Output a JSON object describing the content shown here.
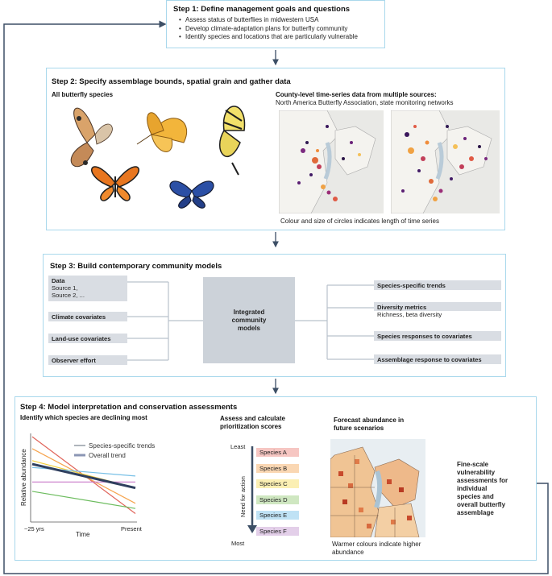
{
  "colors": {
    "box_border": "#a9d8ec",
    "arrow": "#3d4f66",
    "connector": "#b9c2cc",
    "tag_bg": "#d9dde3",
    "center_bg": "#ccd2d9"
  },
  "step1": {
    "title": "Step 1: Define management goals and questions",
    "bullets": [
      "Assess status of butterflies in midwestern USA",
      "Develop climate-adaptation plans for butterfly community",
      "Identify species and locations that are particularly vulnerable"
    ]
  },
  "step2": {
    "title": "Step 2: Specify assemblage bounds, spatial grain and gather data",
    "left_label": "All butterfly species",
    "right_title": "County-level time-series data from multiple sources:",
    "right_sources": "North America Butterfly Association, state monitoring networks",
    "caption": "Colour and size of circles indicates length of time series"
  },
  "step3": {
    "title": "Step 3: Build contemporary community models",
    "data_label": "Data",
    "data_sources": [
      "Source 1,",
      "Source 2, ..."
    ],
    "inputs": [
      "Climate covariates",
      "Land-use covariates",
      "Observer effort"
    ],
    "center": [
      "Integrated",
      "community",
      "models"
    ],
    "outputs": [
      "Species-specific trends",
      "Diversity metrics",
      "Species responses to covariates",
      "Assemblage response to covariates"
    ],
    "diversity_sub": "Richness, beta diversity"
  },
  "step4": {
    "title": "Step 4: Model interpretation and conservation assessments",
    "decline_title": "Identify which species are declining most",
    "assess_title": [
      "Assess and calculate",
      "prioritization scores"
    ],
    "forecast_title": [
      "Forecast abundance in",
      "future scenarios"
    ],
    "least": "Least",
    "most": "Most",
    "need_label": "Need for action",
    "species": [
      "Species A",
      "Species B",
      "Species C",
      "Species D",
      "Species E",
      "Species F"
    ],
    "species_colors": [
      "#f6c6c2",
      "#fad7b3",
      "#fbefb3",
      "#cfe7c1",
      "#bfe2f5",
      "#e3cfe9"
    ],
    "forecast_caption": [
      "Warmer colours indicate higher",
      "abundance"
    ],
    "final_text": [
      "Fine-scale",
      "vulnerability",
      "assessments for",
      "individual",
      "species and",
      "overall butterfly",
      "assemblage"
    ]
  },
  "chart_data": {
    "type": "line",
    "title": "",
    "xlabel": "Time",
    "ylabel": "Relative abundance",
    "x": [
      "~25 yrs",
      "Present"
    ],
    "legend": [
      "Species-specific trends",
      "Overall trend"
    ],
    "series": [
      {
        "values": [
          0.98,
          0.08
        ],
        "color": "#e0645a"
      },
      {
        "values": [
          0.84,
          0.2
        ],
        "color": "#f6a44e"
      },
      {
        "values": [
          0.7,
          0.38
        ],
        "color": "#f2cf3b"
      },
      {
        "values": [
          0.62,
          0.52
        ],
        "color": "#78c0e6"
      },
      {
        "values": [
          0.45,
          0.45
        ],
        "color": "#c978c9"
      },
      {
        "values": [
          0.34,
          0.14
        ],
        "color": "#6cbc5e"
      },
      {
        "values": [
          0.66,
          0.38
        ],
        "color": "#2f3f5e",
        "overall": true
      }
    ]
  }
}
